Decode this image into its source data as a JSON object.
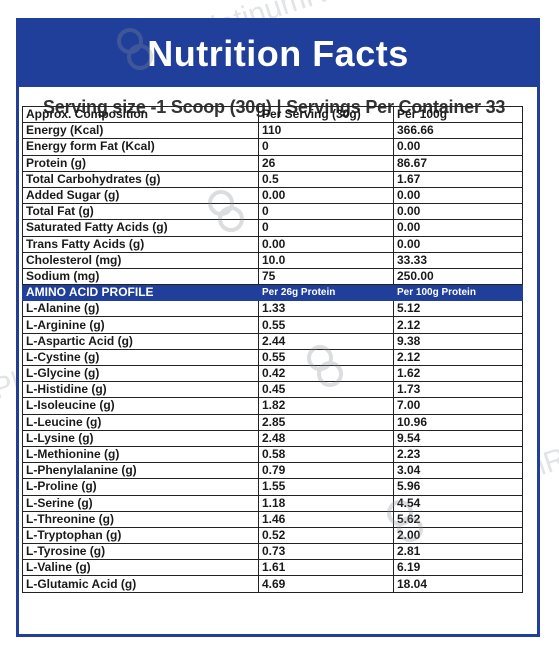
{
  "header": {
    "title": "Nutrition Facts"
  },
  "serving_line": "Serving size -1 Scoop (30g)  |  Servings Per Container 33",
  "table": {
    "columns": [
      "Approx. Composition",
      "Per Serving  (30g)",
      "Per 100g"
    ],
    "rows": [
      [
        "Energy (Kcal)",
        "110",
        "366.66"
      ],
      [
        "Energy form Fat (Kcal)",
        "0",
        "0.00"
      ],
      [
        "Protein (g)",
        "26",
        "86.67"
      ],
      [
        "Total Carbohydrates (g)",
        "0.5",
        "1.67"
      ],
      [
        "Added Sugar (g)",
        "0.00",
        "0.00"
      ],
      [
        "Total Fat (g)",
        "0",
        "0.00"
      ],
      [
        "Saturated Fatty Acids (g)",
        "0",
        "0.00"
      ],
      [
        "Trans Fatty Acids (g)",
        "0.00",
        "0.00"
      ],
      [
        "Cholesterol (mg)",
        "10.0",
        "33.33"
      ],
      [
        "Sodium (mg)",
        "75",
        "250.00"
      ]
    ],
    "amino_header": [
      "AMINO ACID PROFILE",
      "Per 26g Protein",
      "Per 100g Protein"
    ],
    "amino_rows": [
      [
        "L-Alanine (g)",
        "1.33",
        "5.12"
      ],
      [
        "L-Arginine (g)",
        "0.55",
        "2.12"
      ],
      [
        "L-Aspartic Acid (g)",
        "2.44",
        "9.38"
      ],
      [
        "L-Cystine (g)",
        "0.55",
        "2.12"
      ],
      [
        "L-Glycine (g)",
        "0.42",
        "1.62"
      ],
      [
        "L-Histidine (g)",
        "0.45",
        "1.73"
      ],
      [
        "L-Isoleucine (g)",
        "1.82",
        "7.00"
      ],
      [
        "L-Leucine (g)",
        "2.85",
        "10.96"
      ],
      [
        "L-Lysine (g)",
        "2.48",
        "9.54"
      ],
      [
        "L-Methionine (g)",
        "0.58",
        "2.23"
      ],
      [
        "L-Phenylalanine (g)",
        "0.79",
        "3.04"
      ],
      [
        "L-Proline (g)",
        "1.55",
        "5.96"
      ],
      [
        "L-Serine (g)",
        "1.18",
        "4.54"
      ],
      [
        "L-Threonine (g)",
        "1.46",
        "5.62"
      ],
      [
        "L-Tryptophan (g)",
        "0.52",
        "2.00"
      ],
      [
        "L-Tyrosine (g)",
        "0.73",
        "2.81"
      ],
      [
        "L-Valine (g)",
        "1.61",
        "6.19"
      ],
      [
        "L-Glutamic Acid (g)",
        "4.69",
        "18.04"
      ]
    ]
  },
  "watermark": {
    "text": "PlatinumRx"
  },
  "colors": {
    "brand_blue": "#1f3f9a",
    "border": "#222222"
  }
}
